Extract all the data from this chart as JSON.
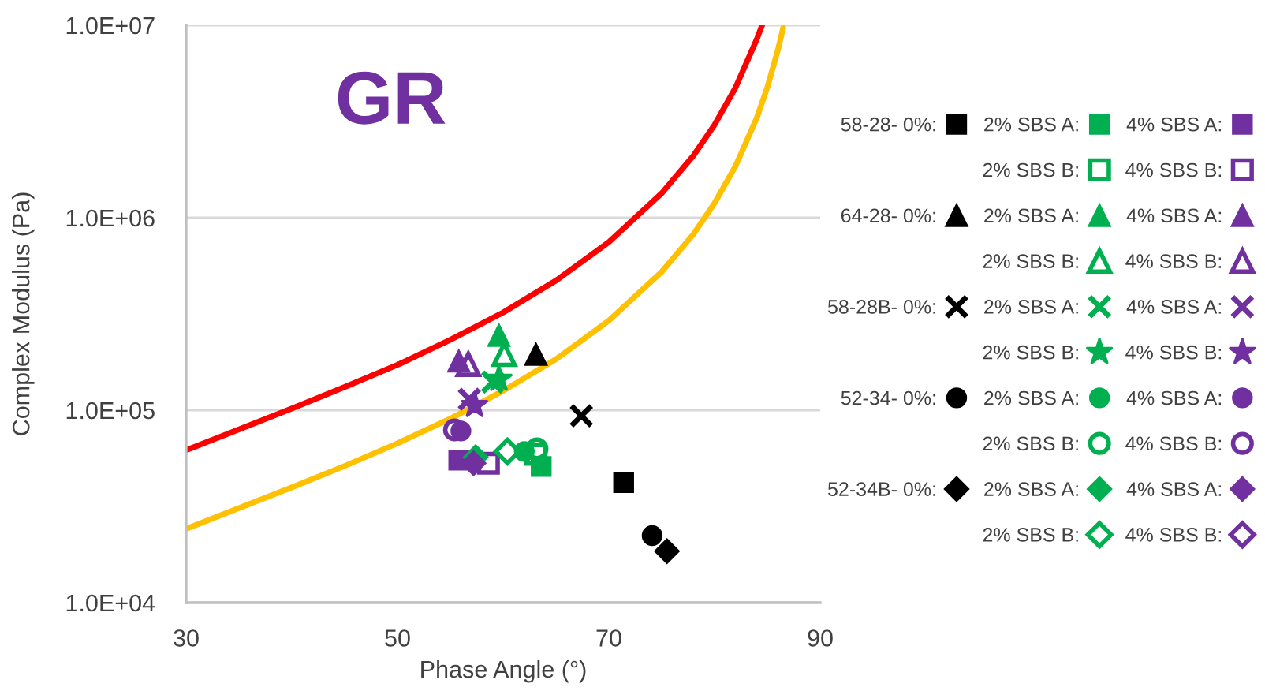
{
  "chart_data": {
    "type": "scatter",
    "title": "GR",
    "xlabel": "Phase Angle (°)",
    "ylabel": "Complex Modulus (Pa)",
    "xlim": [
      30,
      90
    ],
    "xticks": [
      30,
      50,
      70,
      90
    ],
    "ylim": [
      10000,
      10000000
    ],
    "yticks": [
      {
        "value": 10000,
        "label": "1.0E+04"
      },
      {
        "value": 100000,
        "label": "1.0E+05"
      },
      {
        "value": 1000000,
        "label": "1.0E+06"
      },
      {
        "value": 10000000,
        "label": "1.0E+07"
      }
    ],
    "log": "y",
    "grid": "y",
    "legend": "right",
    "series": [
      {
        "type": "line",
        "marker": "none",
        "line_style": "solid",
        "color": "#ff0000",
        "x": [
          30,
          35,
          40,
          45,
          50,
          55,
          60,
          65,
          70,
          75,
          78,
          80,
          82,
          84,
          84.5
        ],
        "values": [
          62000,
          79500,
          102000,
          132000,
          172000,
          232000,
          322000,
          472000,
          747000,
          1340000,
          2100000,
          3040000,
          4760000,
          8460000,
          10000000
        ]
      },
      {
        "type": "line",
        "marker": "none",
        "line_style": "solid",
        "color": "#ffc000",
        "x": [
          30,
          35,
          40,
          45,
          50,
          55,
          60,
          65,
          70,
          75,
          78,
          80,
          82,
          84,
          85,
          86,
          86.5
        ],
        "values": [
          24200,
          31000,
          39700,
          51300,
          67300,
          90400,
          126000,
          184000,
          292000,
          523000,
          820000,
          1190000,
          1860000,
          3300000,
          4760000,
          7440000,
          9720000
        ]
      },
      {
        "name": "58-28- 0%:",
        "marker": "square",
        "color": "#000000",
        "x": [
          71.4
        ],
        "values": [
          42000
        ]
      },
      {
        "name": "2% SBS A:",
        "marker": "square",
        "color": "#00b050",
        "x": [
          63.6
        ],
        "values": [
          51000
        ]
      },
      {
        "name": "2% SBS B:",
        "marker": "square-open",
        "color": "#00b050",
        "x": [
          63.1
        ],
        "values": [
          59000
        ]
      },
      {
        "name": "4% SBS A:",
        "marker": "square",
        "color": "#7030a0",
        "x": [
          55.8
        ],
        "values": [
          55000
        ]
      },
      {
        "name": "4% SBS B:",
        "marker": "square-open",
        "color": "#7030a0",
        "x": [
          58.6
        ],
        "values": [
          53000
        ]
      },
      {
        "name": "64-28- 0%:",
        "marker": "triangle",
        "color": "#000000",
        "x": [
          63.1
        ],
        "values": [
          195000
        ]
      },
      {
        "name": "2% SBS A:",
        "marker": "triangle",
        "color": "#00b050",
        "x": [
          59.6
        ],
        "values": [
          245000
        ]
      },
      {
        "name": "2% SBS B:",
        "marker": "triangle-open",
        "color": "#00b050",
        "x": [
          60.1
        ],
        "values": [
          195000
        ]
      },
      {
        "name": "4% SBS A:",
        "marker": "triangle",
        "color": "#7030a0",
        "x": [
          55.8
        ],
        "values": [
          180000
        ]
      },
      {
        "name": "4% SBS B:",
        "marker": "triangle-open",
        "color": "#7030a0",
        "x": [
          56.7
        ],
        "values": [
          173000
        ]
      },
      {
        "name": "58-28B- 0%:",
        "marker": "cross",
        "color": "#000000",
        "x": [
          67.4
        ],
        "values": [
          93500
        ]
      },
      {
        "name": "2% SBS A:",
        "marker": "cross",
        "color": "#00b050",
        "x": [
          59.0
        ],
        "values": [
          140000
        ]
      },
      {
        "name": "2% SBS B:",
        "marker": "star",
        "color": "#00b050",
        "x": [
          59.6
        ],
        "values": [
          145000
        ]
      },
      {
        "name": "4% SBS A:",
        "marker": "cross",
        "color": "#7030a0",
        "x": [
          56.8
        ],
        "values": [
          114000
        ]
      },
      {
        "name": "4% SBS B:",
        "marker": "star",
        "color": "#7030a0",
        "x": [
          57.3
        ],
        "values": [
          106000
        ]
      },
      {
        "name": "52-34- 0%:",
        "marker": "circle",
        "color": "#000000",
        "x": [
          74.1
        ],
        "values": [
          22300
        ]
      },
      {
        "name": "2% SBS A:",
        "marker": "circle",
        "color": "#00b050",
        "x": [
          62.0
        ],
        "values": [
          61000
        ]
      },
      {
        "name": "2% SBS B:",
        "marker": "circle-open",
        "color": "#00b050",
        "x": [
          63.2
        ],
        "values": [
          63000
        ]
      },
      {
        "name": "4% SBS A:",
        "marker": "circle",
        "color": "#7030a0",
        "x": [
          56.0
        ],
        "values": [
          78000
        ]
      },
      {
        "name": "4% SBS B:",
        "marker": "circle-open",
        "color": "#7030a0",
        "x": [
          55.4
        ],
        "values": [
          79000
        ]
      },
      {
        "name": "52-34B- 0%:",
        "marker": "diamond",
        "color": "#000000",
        "x": [
          75.5
        ],
        "values": [
          18500
        ]
      },
      {
        "name": "2% SBS A:",
        "marker": "diamond",
        "color": "#00b050",
        "x": [
          57.4
        ],
        "values": [
          57000
        ]
      },
      {
        "name": "2% SBS B:",
        "marker": "diamond-open",
        "color": "#00b050",
        "x": [
          60.4
        ],
        "values": [
          61000
        ]
      },
      {
        "name": "4% SBS A:",
        "marker": "diamond",
        "color": "#7030a0",
        "x": [
          57.2
        ],
        "values": [
          53000
        ]
      },
      {
        "name": "4% SBS B:",
        "marker": "diamond-open",
        "color": "#7030a0",
        "x": [
          null
        ],
        "values": [
          null
        ]
      }
    ]
  }
}
